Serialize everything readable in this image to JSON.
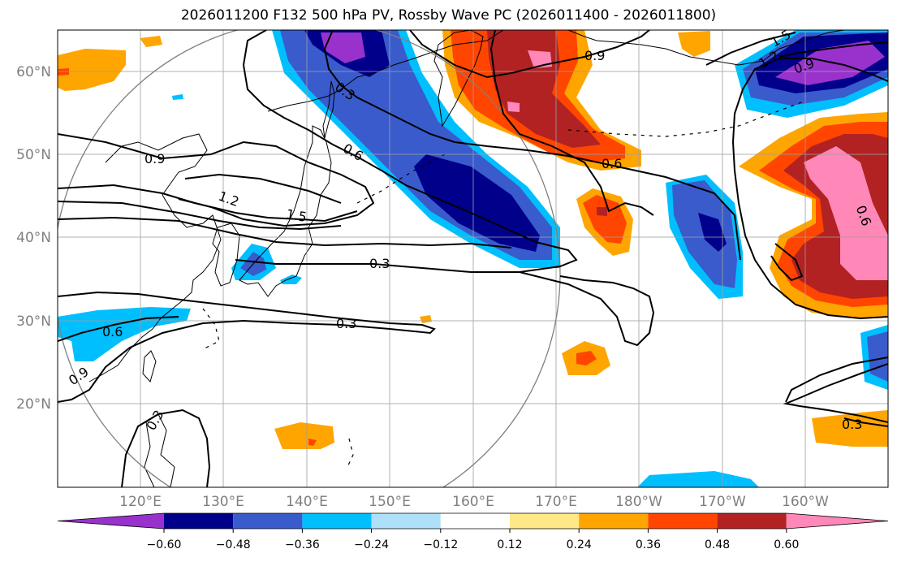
{
  "title": "2026011200 F132 500 hPa PV, Rossby Wave PC (2026011400 - 2026011800)",
  "map": {
    "lon_min": 110,
    "lon_max": 210,
    "lat_min": 10,
    "lat_max": 65,
    "grid_lons": [
      120,
      130,
      140,
      150,
      160,
      170,
      180,
      190,
      200
    ],
    "grid_lats": [
      20,
      30,
      40,
      50,
      60
    ],
    "lat_labels": [
      "20°N",
      "30°N",
      "40°N",
      "50°N",
      "60°N"
    ],
    "lon_labels": [
      "120°E",
      "130°E",
      "140°E",
      "150°E",
      "160°E",
      "170°E",
      "180°W",
      "170°W",
      "160°W"
    ]
  },
  "colorbar": {
    "ticks": [
      "−0.60",
      "−0.48",
      "−0.36",
      "−0.24",
      "−0.12",
      "0.12",
      "0.24",
      "0.36",
      "0.48",
      "0.60"
    ],
    "colors": [
      "#9932cc",
      "#00008b",
      "#3a5bcc",
      "#00bfff",
      "#aee0fa",
      "#ffffff",
      "#ffe987",
      "#ffa500",
      "#ff4500",
      "#b22222",
      "#ff88b8"
    ]
  },
  "contour_labels": [
    "0.9",
    "1.2",
    "1.5",
    "0.3",
    "0.6"
  ]
}
